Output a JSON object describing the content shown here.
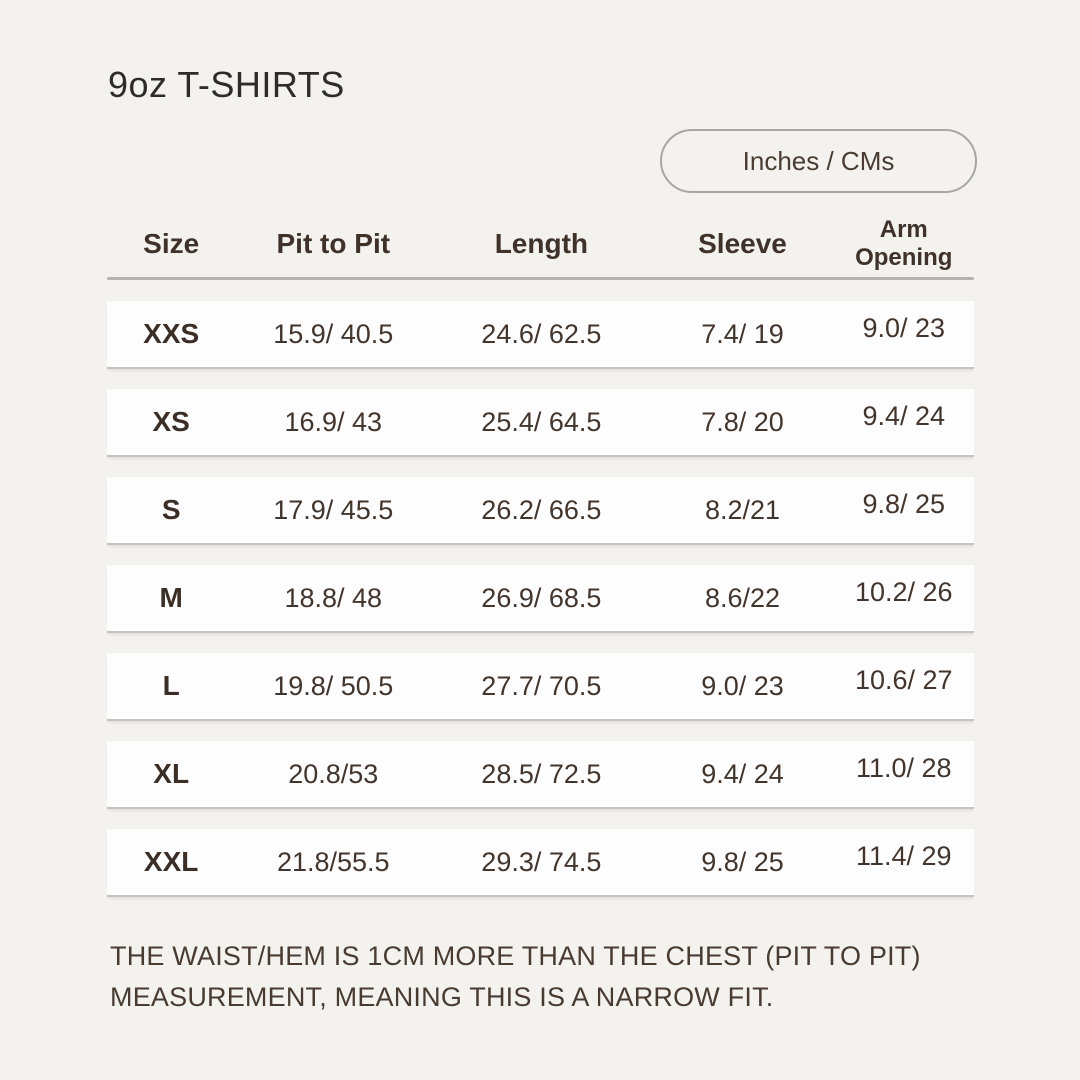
{
  "title": "9oz T-SHIRTS",
  "unit_toggle": {
    "label": "Inches / CMs"
  },
  "chart_data": {
    "type": "table",
    "title": "9oz T-SHIRTS",
    "columns": [
      "Size",
      "Pit to Pit",
      "Length",
      "Sleeve",
      "Arm Opening"
    ],
    "rows": [
      [
        "XXS",
        "15.9/ 40.5",
        "24.6/ 62.5",
        "7.4/ 19",
        "9.0/ 23"
      ],
      [
        "XS",
        "16.9/ 43",
        "25.4/ 64.5",
        "7.8/ 20",
        "9.4/ 24"
      ],
      [
        "S",
        "17.9/ 45.5",
        "26.2/ 66.5",
        "8.2/21",
        "9.8/ 25"
      ],
      [
        "M",
        "18.8/ 48",
        "26.9/ 68.5",
        "8.6/22",
        "10.2/ 26"
      ],
      [
        "L",
        "19.8/ 50.5",
        "27.7/ 70.5",
        "9.0/ 23",
        "10.6/ 27"
      ],
      [
        "XL",
        "20.8/53",
        "28.5/ 72.5",
        "9.4/ 24",
        "11.0/ 28"
      ],
      [
        "XXL",
        "21.8/55.5",
        "29.3/ 74.5",
        "9.8/ 25",
        "11.4/ 29"
      ]
    ],
    "units_note": "values shown as inches/ cm"
  },
  "footnote": {
    "lines": [
      "THE WAIST/HEM IS 1CM MORE THAN THE CHEST (PIT TO PIT)",
      "MEASUREMENT, MEANING THIS IS A NARROW FIT."
    ]
  },
  "colors": {
    "background": "#f4f2ee",
    "card": "#fdfdfd",
    "text": "#42352d",
    "toggle_border": "#a8a6a2",
    "header_rule": "#b6b3af",
    "row_border": "#c6c3bf"
  }
}
